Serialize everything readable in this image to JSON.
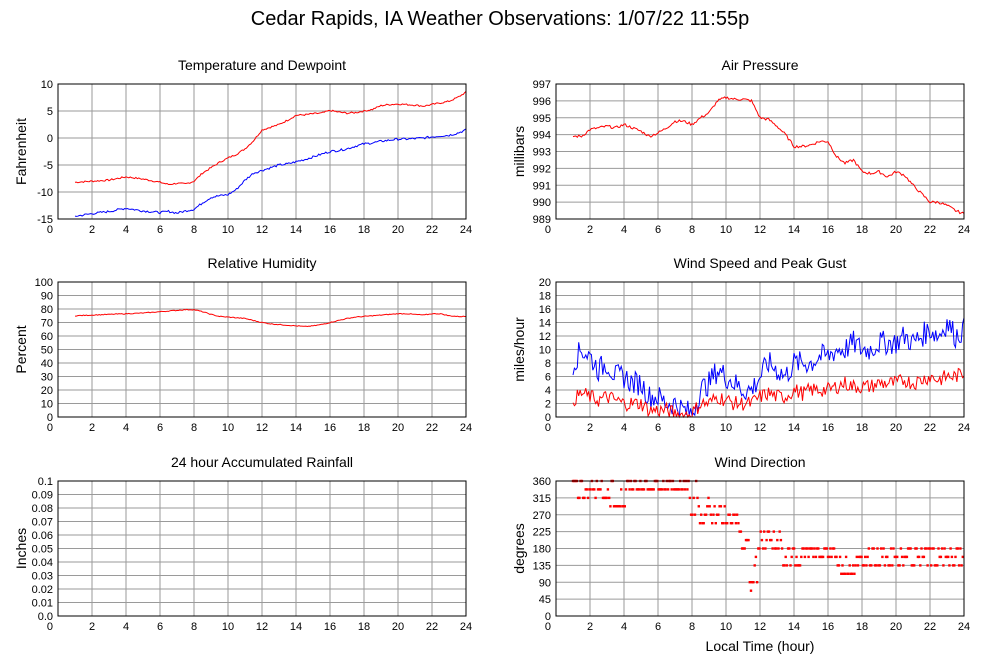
{
  "page_title": "Cedar Rapids, IA Weather Observations: 1/07/22 11:55p",
  "colors": {
    "red": "#ff0000",
    "blue": "#0000ff",
    "grid": "#9a9a9a",
    "frame": "#000000"
  },
  "chart_data": [
    {
      "id": "temp",
      "type": "line",
      "title": "Temperature and Dewpoint",
      "ylabel": "Fahrenheit",
      "xlabel": "",
      "xlim": [
        0,
        24
      ],
      "ylim": [
        -15,
        10
      ],
      "xticks": [
        2,
        4,
        6,
        8,
        10,
        12,
        14,
        16,
        18,
        20,
        22,
        24
      ],
      "yticks": [
        -15,
        -10,
        -5,
        0,
        5,
        10
      ],
      "series": [
        {
          "color": "#ff0000",
          "noise": 0.15,
          "x": [
            1,
            2,
            3,
            4,
            5,
            6,
            6.5,
            7,
            7.5,
            8,
            8.5,
            9,
            9.5,
            10,
            10.5,
            11,
            11.5,
            12,
            12.5,
            13,
            13.5,
            14,
            14.5,
            15,
            15.5,
            16,
            16.5,
            17,
            17.5,
            18,
            18.5,
            19,
            19.5,
            20,
            20.5,
            21,
            21.5,
            22,
            22.5,
            23,
            23.5,
            24
          ],
          "y": [
            -8.2,
            -8,
            -7.8,
            -7.2,
            -7.6,
            -8.2,
            -8.6,
            -8.4,
            -8.5,
            -8,
            -6.5,
            -5.5,
            -4.5,
            -3.7,
            -3,
            -2,
            -0.5,
            1.5,
            2,
            2.5,
            3.3,
            4.2,
            4.3,
            4.5,
            4.6,
            5.1,
            4.8,
            4.6,
            4.7,
            5,
            5.3,
            6,
            6.2,
            6.3,
            6.2,
            6.1,
            5.9,
            6.2,
            6.5,
            6.8,
            7.5,
            8.5
          ]
        },
        {
          "color": "#0000ff",
          "noise": 0.2,
          "x": [
            1,
            2,
            3,
            4,
            5,
            6,
            6.5,
            7,
            7.5,
            8,
            8.5,
            9,
            9.5,
            10,
            10.5,
            11,
            11.5,
            12,
            12.5,
            13,
            13.5,
            14,
            14.5,
            15,
            15.5,
            16,
            16.5,
            17,
            17.5,
            18,
            18.5,
            19,
            19.5,
            20,
            20.5,
            21,
            21.5,
            22,
            22.5,
            23,
            23.5,
            24
          ],
          "y": [
            -14.5,
            -14,
            -13.6,
            -13,
            -13.5,
            -13.8,
            -13.6,
            -13.9,
            -13.5,
            -13.2,
            -12,
            -11,
            -10.7,
            -10.5,
            -9.5,
            -7.8,
            -6.5,
            -6,
            -5.5,
            -5,
            -4.8,
            -4.4,
            -4,
            -3.5,
            -3,
            -2.5,
            -2.3,
            -2,
            -1.5,
            -1.1,
            -0.9,
            -0.6,
            -0.4,
            -0.2,
            -0.2,
            -0.1,
            0,
            0.2,
            0.4,
            0.5,
            0.9,
            1.5
          ]
        }
      ]
    },
    {
      "id": "pressure",
      "type": "line",
      "title": "Air Pressure",
      "ylabel": "millibars",
      "xlabel": "",
      "xlim": [
        0,
        24
      ],
      "ylim": [
        989,
        997
      ],
      "xticks": [
        2,
        4,
        6,
        8,
        10,
        12,
        14,
        16,
        18,
        20,
        22,
        24
      ],
      "yticks": [
        989,
        990,
        991,
        992,
        993,
        994,
        995,
        996,
        997
      ],
      "series": [
        {
          "color": "#ff0000",
          "noise": 0.08,
          "x": [
            1,
            1.5,
            2,
            3,
            3.5,
            4,
            4.5,
            5,
            5.5,
            6,
            6.5,
            7,
            7.5,
            8,
            8.5,
            9,
            9.5,
            10,
            10.5,
            11,
            11.5,
            12,
            12.5,
            13,
            13.5,
            14,
            14.5,
            15,
            15.5,
            16,
            16.5,
            17,
            17.5,
            18,
            18.5,
            19,
            19.5,
            20,
            20.5,
            21,
            21.5,
            22,
            22.5,
            23,
            23.5,
            24
          ],
          "y": [
            993.9,
            993.9,
            994.3,
            994.5,
            994.4,
            994.6,
            994.4,
            994.2,
            993.9,
            994.1,
            994.4,
            994.8,
            994.8,
            994.6,
            995,
            995.3,
            996,
            996.2,
            996.1,
            996.1,
            996,
            995,
            994.9,
            994.5,
            994,
            993.3,
            993.3,
            993.4,
            993.6,
            993.6,
            992.7,
            992.3,
            992.5,
            991.8,
            991.7,
            991.8,
            991.5,
            991.8,
            991.6,
            991,
            990.5,
            990,
            990,
            989.8,
            989.5,
            989.3
          ]
        }
      ]
    },
    {
      "id": "humidity",
      "type": "line",
      "title": "Relative Humidity",
      "ylabel": "Percent",
      "xlabel": "",
      "xlim": [
        0,
        24
      ],
      "ylim": [
        0,
        100
      ],
      "xticks": [
        2,
        4,
        6,
        8,
        10,
        12,
        14,
        16,
        18,
        20,
        22,
        24
      ],
      "yticks": [
        0,
        10,
        20,
        30,
        40,
        50,
        60,
        70,
        80,
        90,
        100
      ],
      "series": [
        {
          "color": "#ff0000",
          "noise": 0.3,
          "x": [
            1,
            2,
            3,
            4,
            5,
            6,
            6.5,
            7,
            7.5,
            8,
            8.5,
            9,
            9.5,
            10,
            10.5,
            11,
            11.5,
            12,
            12.5,
            13,
            13.5,
            14,
            14.5,
            15,
            15.5,
            16,
            16.5,
            17,
            17.5,
            18,
            18.5,
            19,
            19.5,
            20,
            20.5,
            21,
            21.5,
            22,
            22.5,
            23,
            23.5,
            24
          ],
          "y": [
            75,
            75.5,
            76,
            76.5,
            77,
            78,
            78.5,
            79,
            79.5,
            79.5,
            78,
            76,
            74.5,
            74,
            73.5,
            73,
            71.5,
            70,
            69,
            68.5,
            68,
            67.5,
            67,
            67.5,
            68.5,
            70,
            71.5,
            73,
            74,
            74.5,
            75,
            75.5,
            76,
            76.5,
            76.5,
            76,
            75.5,
            76.5,
            76.5,
            75,
            74.5,
            74.5
          ]
        }
      ]
    },
    {
      "id": "wind",
      "type": "line",
      "title": "Wind Speed and Peak Gust",
      "ylabel": "miles/hour",
      "xlabel": "",
      "xlim": [
        0,
        24
      ],
      "ylim": [
        0,
        20
      ],
      "xticks": [
        2,
        4,
        6,
        8,
        10,
        12,
        14,
        16,
        18,
        20,
        22,
        24
      ],
      "yticks": [
        0,
        2,
        4,
        6,
        8,
        10,
        12,
        14,
        16,
        18,
        20
      ],
      "series": [
        {
          "color": "#0000ff",
          "noise": 1.8,
          "x": [
            1,
            1.5,
            2,
            2.5,
            3,
            3.5,
            4,
            4.5,
            5,
            5.5,
            6,
            6.5,
            7,
            7.5,
            8,
            8.5,
            9,
            9.5,
            10,
            10.5,
            11,
            11.5,
            12,
            12.5,
            13,
            13.5,
            14,
            14.5,
            15,
            15.5,
            16,
            16.5,
            17,
            17.5,
            18,
            18.5,
            19,
            19.5,
            20,
            20.5,
            21,
            21.5,
            22,
            22.5,
            23,
            23.5,
            24
          ],
          "y": [
            8,
            10,
            9,
            7,
            8,
            6,
            6,
            5,
            5,
            3,
            3,
            2,
            2,
            1,
            0.5,
            4,
            5,
            7,
            6,
            5,
            4,
            4,
            6,
            8,
            7,
            6,
            8,
            8,
            8,
            9,
            9,
            10,
            10,
            11,
            10,
            10,
            11,
            11,
            11,
            12,
            11,
            12,
            13,
            12,
            14,
            12,
            13
          ]
        },
        {
          "color": "#ff0000",
          "noise": 1.1,
          "x": [
            1,
            1.5,
            2,
            2.5,
            3,
            3.5,
            4,
            4.5,
            5,
            5.5,
            6,
            6.5,
            7,
            7.5,
            8,
            8.5,
            9,
            9.5,
            10,
            10.5,
            11,
            11.5,
            12,
            12.5,
            13,
            13.5,
            14,
            14.5,
            15,
            15.5,
            16,
            16.5,
            17,
            17.5,
            18,
            18.5,
            19,
            19.5,
            20,
            20.5,
            21,
            21.5,
            22,
            22.5,
            23,
            23.5,
            24
          ],
          "y": [
            2.5,
            3.5,
            3,
            2.5,
            3,
            2.5,
            2,
            2,
            2,
            1,
            1,
            1,
            0.5,
            0.3,
            0.5,
            2,
            2,
            3,
            2.5,
            2,
            2,
            2,
            3,
            3.5,
            3,
            3,
            4,
            3.5,
            4,
            4,
            4,
            4.5,
            5,
            4.5,
            4.5,
            4.5,
            5,
            5,
            5,
            5.5,
            5,
            5.5,
            6,
            5.5,
            6,
            6,
            6.5
          ]
        }
      ]
    },
    {
      "id": "rain",
      "type": "line",
      "title": "24 hour Accumulated Rainfall",
      "ylabel": "Inches",
      "xlabel": "",
      "xlim": [
        0,
        24
      ],
      "ylim": [
        0,
        0.1
      ],
      "xticks": [
        2,
        4,
        6,
        8,
        10,
        12,
        14,
        16,
        18,
        20,
        22,
        24
      ],
      "yticks": [
        0.0,
        0.01,
        0.02,
        0.03,
        0.04,
        0.05,
        0.06,
        0.07,
        0.08,
        0.09,
        0.1
      ],
      "ytick_labels": [
        "0.0",
        "0.01",
        "0.02",
        "0.03",
        "0.04",
        "0.05",
        "0.06",
        "0.07",
        "0.08",
        "0.09",
        "0.1"
      ],
      "series": [
        {
          "color": "#ff0000",
          "noise": 0,
          "x": [
            1,
            24
          ],
          "y": [
            0,
            0
          ]
        }
      ]
    },
    {
      "id": "direction",
      "type": "scatter",
      "title": "Wind Direction",
      "ylabel": "degrees",
      "xlabel": "Local Time (hour)",
      "xlim": [
        0,
        24
      ],
      "ylim": [
        0,
        360
      ],
      "xticks": [
        2,
        4,
        6,
        8,
        10,
        12,
        14,
        16,
        18,
        20,
        22,
        24
      ],
      "yticks": [
        0,
        45,
        90,
        135,
        180,
        225,
        270,
        315,
        360
      ],
      "series": [
        {
          "color": "#ff0000",
          "segments": [
            {
              "x0": 1.0,
              "x1": 1.6,
              "y": [
                360,
                315
              ]
            },
            {
              "x0": 1.6,
              "x1": 3.2,
              "y": [
                337.5,
                315,
                360
              ]
            },
            {
              "x0": 3.2,
              "x1": 4.4,
              "y": [
                337.5,
                360,
                292.5
              ]
            },
            {
              "x0": 4.4,
              "x1": 7.8,
              "y": [
                337.5,
                360
              ]
            },
            {
              "x0": 7.8,
              "x1": 8.4,
              "y": [
                315,
                360,
                270
              ]
            },
            {
              "x0": 8.4,
              "x1": 9.4,
              "y": [
                270,
                292.5,
                315,
                247.5
              ]
            },
            {
              "x0": 9.4,
              "x1": 10.0,
              "y": [
                292.5,
                270,
                247.5
              ]
            },
            {
              "x0": 10.0,
              "x1": 10.8,
              "y": [
                247.5,
                270
              ]
            },
            {
              "x0": 10.8,
              "x1": 11.4,
              "y": [
                225,
                202.5,
                180
              ]
            },
            {
              "x0": 11.4,
              "x1": 11.9,
              "y": [
                157.5,
                135,
                112.5,
                90,
                67.5
              ]
            },
            {
              "x0": 11.9,
              "x1": 13.3,
              "y": [
                180,
                202.5,
                225
              ]
            },
            {
              "x0": 13.3,
              "x1": 14.5,
              "y": [
                180,
                157.5,
                135
              ]
            },
            {
              "x0": 14.5,
              "x1": 16.5,
              "y": [
                157.5,
                180
              ]
            },
            {
              "x0": 16.5,
              "x1": 18.4,
              "y": [
                157.5,
                135,
                112.5
              ]
            },
            {
              "x0": 18.4,
              "x1": 20.0,
              "y": [
                180,
                157.5,
                135
              ]
            },
            {
              "x0": 20.0,
              "x1": 24.0,
              "y": [
                157.5,
                180,
                135
              ]
            }
          ]
        }
      ]
    }
  ]
}
